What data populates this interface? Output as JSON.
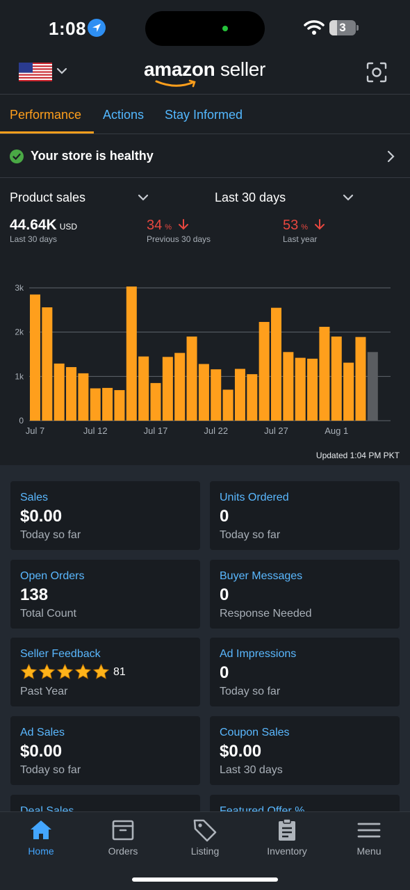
{
  "status_bar": {
    "time": "1:08",
    "battery": "3"
  },
  "header": {
    "logo_bold": "amazon",
    "logo_light": "seller",
    "icons": [
      "us-flag-icon",
      "chevron-down-icon",
      "scan-icon"
    ]
  },
  "tabs": [
    {
      "label": "Performance",
      "active": true
    },
    {
      "label": "Actions",
      "active": false
    },
    {
      "label": "Stay Informed",
      "active": false
    }
  ],
  "health": {
    "text": "Your store is healthy"
  },
  "selectors": {
    "metric": "Product sales",
    "range": "Last 30 days"
  },
  "kpis": {
    "current": {
      "value": "44.64K",
      "unit": "USD",
      "label": "Last 30 days"
    },
    "prev": {
      "value": "34",
      "symbol": "%",
      "label": "Previous 30 days"
    },
    "year": {
      "value": "53",
      "symbol": "%",
      "label": "Last year"
    }
  },
  "chart_data": {
    "type": "bar",
    "categories": [
      "Jul 7",
      "Jul 8",
      "Jul 9",
      "Jul 10",
      "Jul 11",
      "Jul 12",
      "Jul 13",
      "Jul 14",
      "Jul 15",
      "Jul 16",
      "Jul 17",
      "Jul 18",
      "Jul 19",
      "Jul 20",
      "Jul 21",
      "Jul 22",
      "Jul 23",
      "Jul 24",
      "Jul 25",
      "Jul 26",
      "Jul 27",
      "Jul 28",
      "Jul 29",
      "Jul 30",
      "Jul 31",
      "Aug 1",
      "Aug 2",
      "Aug 3",
      "Aug 4"
    ],
    "values": [
      2850,
      2560,
      1290,
      1210,
      1070,
      730,
      740,
      690,
      3030,
      1450,
      850,
      1440,
      1530,
      1900,
      1280,
      1160,
      700,
      1170,
      1050,
      2230,
      2550,
      1550,
      1420,
      1400,
      2120,
      1900,
      1310,
      1890,
      1550
    ],
    "highlight_last": true,
    "x_tick_labels": [
      "Jul 7",
      "Jul 12",
      "Jul 17",
      "Jul 22",
      "Jul 27",
      "Aug 1"
    ],
    "y_tick_labels": [
      "0",
      "1k",
      "2k",
      "3k"
    ],
    "ylim": [
      0,
      3000
    ],
    "bar_color": "#ff9f1c",
    "last_bar_color": "#5a5d61",
    "grid": true
  },
  "updated": "Updated 1:04 PM PKT",
  "cards": [
    {
      "title": "Sales",
      "value": "$0.00",
      "sub": "Today so far"
    },
    {
      "title": "Units Ordered",
      "value": "0",
      "sub": "Today so far"
    },
    {
      "title": "Open Orders",
      "value": "138",
      "sub": "Total Count"
    },
    {
      "title": "Buyer Messages",
      "value": "0",
      "sub": "Response Needed"
    },
    {
      "title": "Seller Feedback",
      "stars": 5,
      "count": "81",
      "sub": "Past Year"
    },
    {
      "title": "Ad Impressions",
      "value": "0",
      "sub": "Today so far"
    },
    {
      "title": "Ad Sales",
      "value": "$0.00",
      "sub": "Today so far"
    },
    {
      "title": "Coupon Sales",
      "value": "$0.00",
      "sub": "Last 30 days"
    },
    {
      "title": "Deal Sales",
      "value": "",
      "sub": ""
    },
    {
      "title": "Featured Offer %",
      "value": "",
      "sub": ""
    }
  ],
  "nav": [
    {
      "label": "Home",
      "icon": "home-icon",
      "active": true
    },
    {
      "label": "Orders",
      "icon": "orders-box-icon",
      "active": false
    },
    {
      "label": "Listing",
      "icon": "tag-icon",
      "active": false
    },
    {
      "label": "Inventory",
      "icon": "clipboard-icon",
      "active": false
    },
    {
      "label": "Menu",
      "icon": "hamburger-menu-icon",
      "active": false
    }
  ],
  "colors": {
    "accent": "#ff9f1c",
    "link": "#53b8ff",
    "negative": "#e8473f",
    "healthy": "#4aa945",
    "nav_active": "#43a6ff"
  }
}
